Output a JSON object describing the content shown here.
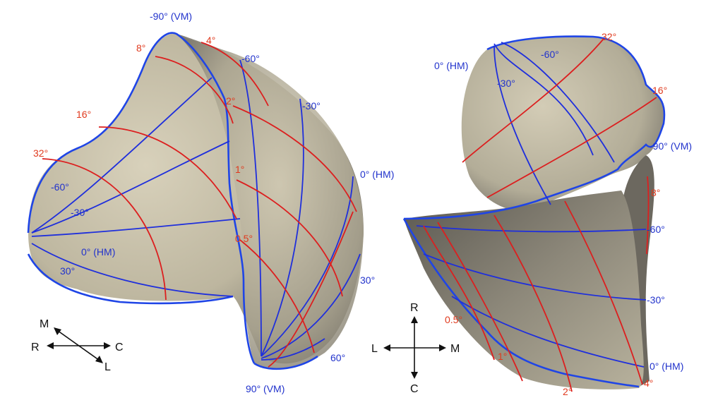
{
  "colors": {
    "surface_light": "#cdc6b0",
    "surface_dark": "#6f6b62",
    "azimuth_lines": "#1f2fdc",
    "eccentricity_lines": "#dc1f1f",
    "blue_label": "#2233cc",
    "red_label": "#e03a1e"
  },
  "left_view": {
    "blue_labels": [
      "-90° (VM)",
      "-60°",
      "-30°",
      "0° (HM)",
      "-60°",
      "-30°",
      "0° (HM)",
      "30°",
      "30°",
      "60°",
      "90° (VM)"
    ],
    "red_labels": [
      "8°",
      "4°",
      "16°",
      "2°",
      "32°",
      "1°",
      "0.5°"
    ],
    "axes": {
      "up_left": "M",
      "left": "R",
      "right": "C",
      "down_right": "L"
    }
  },
  "right_view": {
    "blue_labels": [
      "0° (HM)",
      "-60°",
      "-30°",
      "-90° (VM)",
      "-60°",
      "-30°",
      "0° (HM)"
    ],
    "red_labels": [
      "32°",
      "16°",
      "8°",
      "0.5°",
      "1°",
      "2°",
      "4°"
    ],
    "axes": {
      "up": "R",
      "left": "L",
      "right": "M",
      "down": "C"
    }
  }
}
